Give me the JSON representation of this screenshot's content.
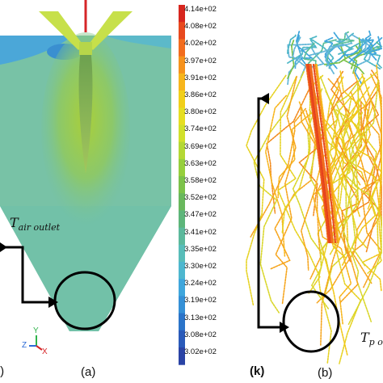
{
  "panels": {
    "a": {
      "label": "(a)",
      "annotation_main": "T",
      "annotation_sub": "air outlet",
      "axis_y": "Y",
      "axis_z": "Z",
      "axis_x": "X",
      "edge_fragment": ":)"
    },
    "b": {
      "label": "(b)",
      "annotation_main": "T",
      "annotation_sub": "p o"
    }
  },
  "colorbar": {
    "unit_label": "(k)",
    "ticks": [
      "4.14e+02",
      "4.08e+02",
      "4.02e+02",
      "3.97e+02",
      "3.91e+02",
      "3.86e+02",
      "3.80e+02",
      "3.74e+02",
      "3.69e+02",
      "3.63e+02",
      "3.58e+02",
      "3.52e+02",
      "3.47e+02",
      "3.41e+02",
      "3.35e+02",
      "3.30e+02",
      "3.24e+02",
      "3.19e+02",
      "3.13e+02",
      "3.08e+02",
      "3.02e+02"
    ],
    "colors": [
      "#d7261e",
      "#e8491e",
      "#f26c1e",
      "#f6921d",
      "#f7b51c",
      "#f1cf1a",
      "#e6de22",
      "#d1e02b",
      "#b4d834",
      "#96cf3d",
      "#7cc24a",
      "#69b85d",
      "#5db57a",
      "#5cb99c",
      "#58bdb9",
      "#4eb7cf",
      "#3fa6dc",
      "#3590d6",
      "#2b74c9",
      "#2a5ab9",
      "#2a43a5"
    ]
  }
}
